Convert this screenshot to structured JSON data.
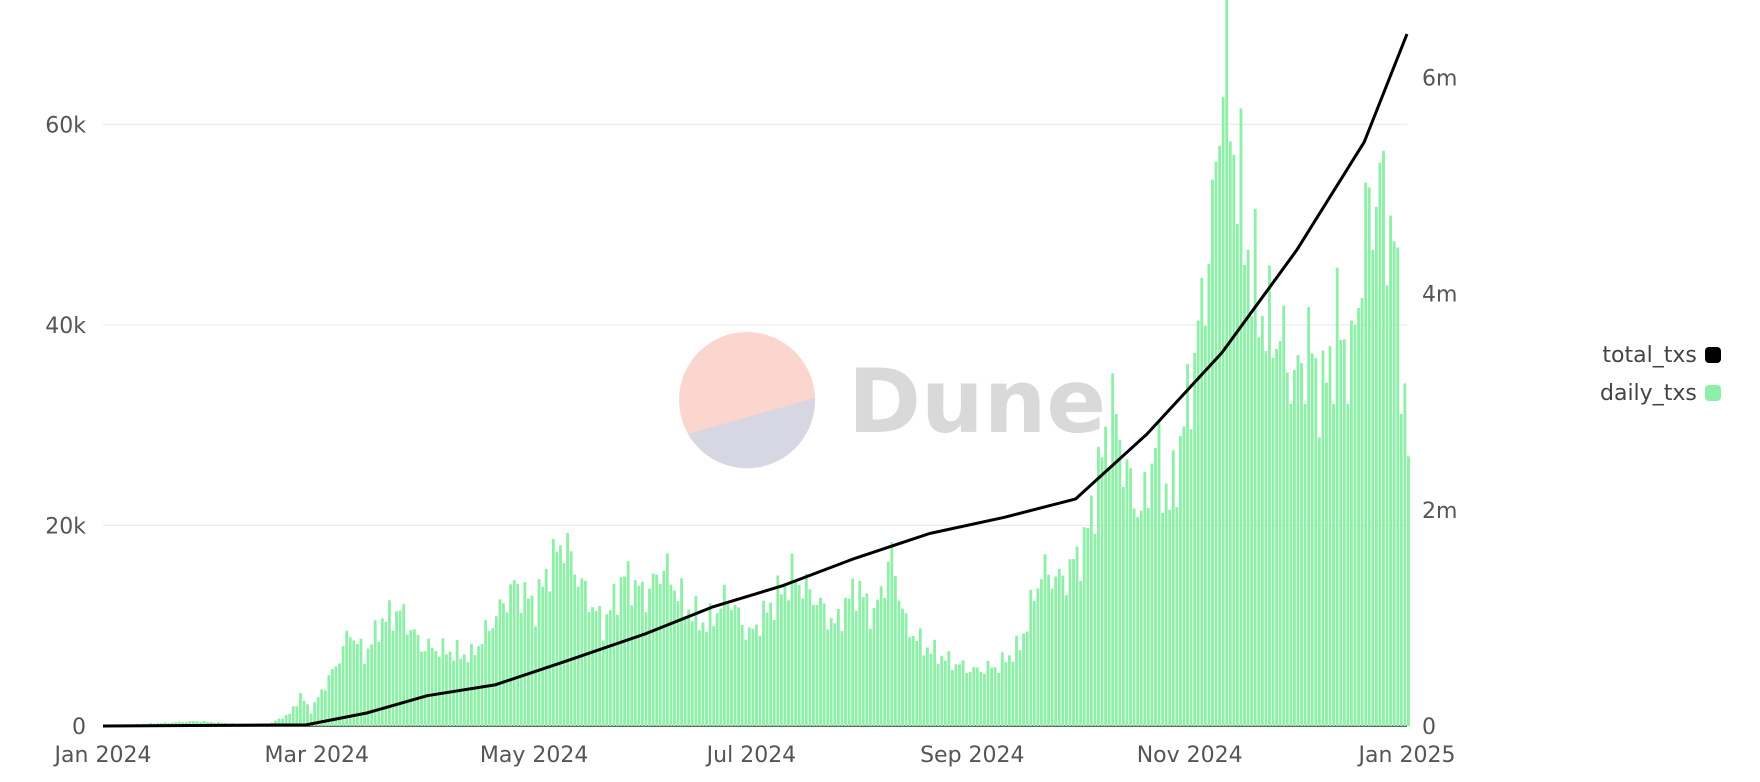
{
  "chart_data": {
    "type": "bar+line",
    "x_ticks": [
      "Jan 2024",
      "Mar 2024",
      "May 2024",
      "Jul 2024",
      "Sep 2024",
      "Nov 2024",
      "Jan 2025"
    ],
    "y_left": {
      "ticks": [
        0,
        20000,
        40000,
        60000
      ],
      "tick_labels": [
        "0",
        "20k",
        "40k",
        "60k"
      ],
      "range": [
        0,
        69000
      ]
    },
    "y_right": {
      "ticks": [
        0,
        2000000,
        4000000,
        6000000
      ],
      "tick_labels": [
        "0",
        "2m",
        "4m",
        "6m"
      ],
      "range": [
        0,
        6400000
      ]
    },
    "series": [
      {
        "name": "daily_txs",
        "type": "bar",
        "axis": "left",
        "color": "#8ef0a8",
        "points": [
          [
            "2024-01-01",
            0
          ],
          [
            "2024-01-27",
            500
          ],
          [
            "2024-02-15",
            0
          ],
          [
            "2024-02-22",
            1200
          ],
          [
            "2024-02-25",
            3000
          ],
          [
            "2024-02-28",
            1500
          ],
          [
            "2024-03-02",
            3500
          ],
          [
            "2024-03-06",
            6000
          ],
          [
            "2024-03-10",
            9500
          ],
          [
            "2024-03-14",
            7000
          ],
          [
            "2024-03-19",
            10500
          ],
          [
            "2024-03-24",
            11500
          ],
          [
            "2024-03-30",
            8000
          ],
          [
            "2024-04-06",
            7500
          ],
          [
            "2024-04-13",
            7000
          ],
          [
            "2024-04-20",
            11000
          ],
          [
            "2024-04-25",
            14000
          ],
          [
            "2024-05-01",
            12000
          ],
          [
            "2024-05-05",
            16000
          ],
          [
            "2024-05-09",
            18500
          ],
          [
            "2024-05-14",
            14000
          ],
          [
            "2024-05-20",
            10000
          ],
          [
            "2024-05-26",
            15000
          ],
          [
            "2024-06-01",
            13000
          ],
          [
            "2024-06-06",
            16000
          ],
          [
            "2024-06-12",
            12000
          ],
          [
            "2024-06-18",
            10000
          ],
          [
            "2024-06-24",
            13000
          ],
          [
            "2024-06-30",
            9000
          ],
          [
            "2024-07-06",
            12000
          ],
          [
            "2024-07-12",
            15000
          ],
          [
            "2024-07-18",
            13000
          ],
          [
            "2024-07-24",
            10000
          ],
          [
            "2024-07-30",
            14000
          ],
          [
            "2024-08-04",
            11000
          ],
          [
            "2024-08-09",
            17000
          ],
          [
            "2024-08-13",
            10000
          ],
          [
            "2024-08-18",
            8000
          ],
          [
            "2024-08-25",
            6500
          ],
          [
            "2024-09-01",
            5500
          ],
          [
            "2024-09-08",
            6000
          ],
          [
            "2024-09-14",
            8000
          ],
          [
            "2024-09-20",
            15500
          ],
          [
            "2024-09-26",
            14500
          ],
          [
            "2024-10-02",
            18000
          ],
          [
            "2024-10-06",
            25000
          ],
          [
            "2024-10-10",
            32000
          ],
          [
            "2024-10-14",
            25000
          ],
          [
            "2024-10-18",
            21000
          ],
          [
            "2024-10-22",
            28000
          ],
          [
            "2024-10-26",
            22000
          ],
          [
            "2024-10-30",
            30000
          ],
          [
            "2024-11-03",
            39000
          ],
          [
            "2024-11-07",
            50000
          ],
          [
            "2024-11-10",
            67000
          ],
          [
            "2024-11-14",
            55000
          ],
          [
            "2024-11-18",
            45000
          ],
          [
            "2024-11-22",
            40000
          ],
          [
            "2024-11-26",
            39000
          ],
          [
            "2024-11-30",
            34000
          ],
          [
            "2024-12-04",
            38000
          ],
          [
            "2024-12-08",
            33000
          ],
          [
            "2024-12-12",
            40000
          ],
          [
            "2024-12-16",
            36000
          ],
          [
            "2024-12-20",
            50000
          ],
          [
            "2024-12-24",
            54000
          ],
          [
            "2024-12-28",
            48000
          ],
          [
            "2025-01-01",
            27000
          ]
        ]
      },
      {
        "name": "total_txs",
        "type": "line",
        "axis": "right",
        "color": "#000000",
        "points": [
          [
            "2024-01-01",
            0
          ],
          [
            "2024-02-27",
            10000
          ],
          [
            "2024-03-15",
            120000
          ],
          [
            "2024-04-01",
            280000
          ],
          [
            "2024-04-20",
            380000
          ],
          [
            "2024-05-10",
            600000
          ],
          [
            "2024-06-01",
            850000
          ],
          [
            "2024-06-20",
            1100000
          ],
          [
            "2024-07-10",
            1300000
          ],
          [
            "2024-07-30",
            1550000
          ],
          [
            "2024-08-20",
            1780000
          ],
          [
            "2024-09-10",
            1930000
          ],
          [
            "2024-09-30",
            2100000
          ],
          [
            "2024-10-20",
            2700000
          ],
          [
            "2024-11-10",
            3450000
          ],
          [
            "2024-12-01",
            4400000
          ],
          [
            "2024-12-20",
            5400000
          ],
          [
            "2025-01-01",
            6400000
          ]
        ]
      }
    ],
    "legend_position": "right",
    "grid": true
  },
  "legend": [
    {
      "label": "total_txs",
      "color": "#000000"
    },
    {
      "label": "daily_txs",
      "color": "#8ef0a8"
    }
  ],
  "watermark": {
    "text": "Dune"
  }
}
